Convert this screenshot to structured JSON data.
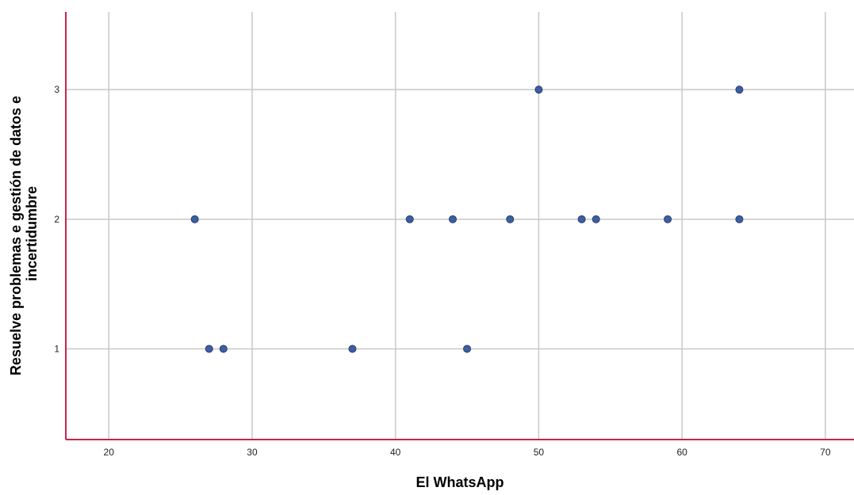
{
  "chart_data": {
    "type": "scatter",
    "xlabel": "El WhatsApp",
    "ylabel_lines": [
      "Resuelve problemas e gestión de datos e",
      "incertidumbre"
    ],
    "xlim": [
      17,
      72
    ],
    "ylim": [
      0.3,
      3.6
    ],
    "x_ticks": [
      20,
      30,
      40,
      50,
      60,
      70
    ],
    "y_ticks": [
      1,
      2,
      3
    ],
    "grid": true,
    "points": [
      {
        "x": 26,
        "y": 2
      },
      {
        "x": 27,
        "y": 1
      },
      {
        "x": 28,
        "y": 1
      },
      {
        "x": 37,
        "y": 1
      },
      {
        "x": 41,
        "y": 2
      },
      {
        "x": 44,
        "y": 2
      },
      {
        "x": 45,
        "y": 1
      },
      {
        "x": 48,
        "y": 2
      },
      {
        "x": 50,
        "y": 3
      },
      {
        "x": 53,
        "y": 2
      },
      {
        "x": 54,
        "y": 2
      },
      {
        "x": 59,
        "y": 2
      },
      {
        "x": 64,
        "y": 2
      },
      {
        "x": 64,
        "y": 3
      }
    ],
    "colors": {
      "point_fill": "#3b5fa0",
      "point_stroke": "#2c3e73",
      "axis": "#c8234a",
      "grid": "#c8c8c8"
    }
  }
}
